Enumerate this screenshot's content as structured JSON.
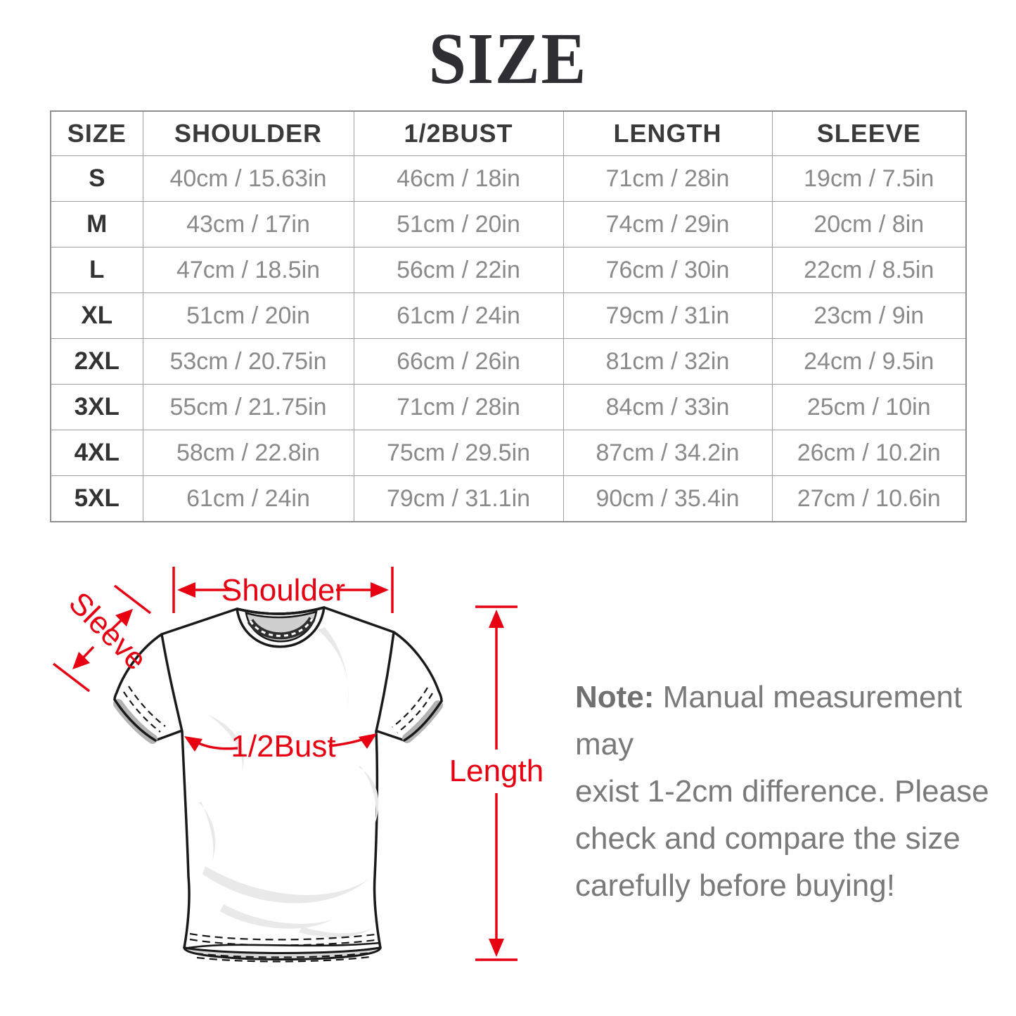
{
  "title": "SIZE",
  "table": {
    "headers": [
      "SIZE",
      "SHOULDER",
      "1/2BUST",
      "LENGTH",
      "SLEEVE"
    ],
    "rows": [
      [
        "S",
        "40cm / 15.63in",
        "46cm / 18in",
        "71cm / 28in",
        "19cm / 7.5in"
      ],
      [
        "M",
        "43cm / 17in",
        "51cm / 20in",
        "74cm / 29in",
        "20cm / 8in"
      ],
      [
        "L",
        "47cm / 18.5in",
        "56cm / 22in",
        "76cm / 30in",
        "22cm / 8.5in"
      ],
      [
        "XL",
        "51cm / 20in",
        "61cm / 24in",
        "79cm / 31in",
        "23cm / 9in"
      ],
      [
        "2XL",
        "53cm / 20.75in",
        "66cm / 26in",
        "81cm / 32in",
        "24cm / 9.5in"
      ],
      [
        "3XL",
        "55cm / 21.75in",
        "71cm / 28in",
        "84cm / 33in",
        "25cm / 10in"
      ],
      [
        "4XL",
        "58cm / 22.8in",
        "75cm / 29.5in",
        "87cm / 34.2in",
        "26cm / 10.2in"
      ],
      [
        "5XL",
        "61cm / 24in",
        "79cm / 31.1in",
        "90cm / 35.4in",
        "27cm / 10.6in"
      ]
    ]
  },
  "diagram": {
    "labels": {
      "shoulder": "Shoulder",
      "sleeve": "Sleeve",
      "half_bust": "1/2Bust",
      "length": "Length"
    },
    "annotation_color": "#e60012",
    "outline_color": "#1a1a1a"
  },
  "note": {
    "label": "Note:",
    "lines": [
      "Manual measurement may",
      "exist 1-2cm difference. Please",
      "check and compare the size",
      "carefully before buying!"
    ]
  }
}
